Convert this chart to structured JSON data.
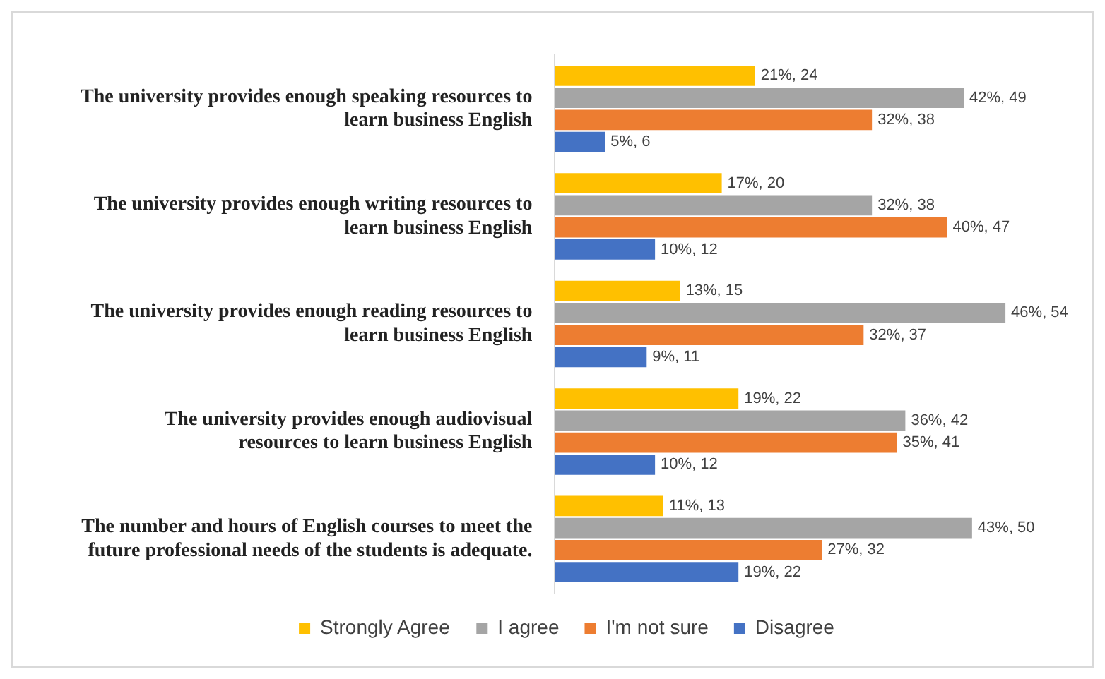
{
  "chart_data": {
    "type": "bar",
    "orientation": "horizontal",
    "legend": "bottom",
    "grid": false,
    "categories": [
      "The university provides enough speaking resources to learn business English",
      "The university provides enough writing resources to learn business English",
      "The university provides enough reading resources to learn business English",
      "The university provides enough audiovisual resources to learn business English",
      "The number and hours of English courses to meet the future professional needs of the students is adequate."
    ],
    "series": [
      {
        "name": "Strongly Agree",
        "color": "#ffc000",
        "values": [
          24,
          20,
          15,
          22,
          13
        ],
        "value_labels": [
          "21%, 24",
          "17%, 20",
          "13%, 15",
          "19%, 22",
          "11%, 13"
        ]
      },
      {
        "name": "I agree",
        "color": "#a5a5a5",
        "values": [
          49,
          38,
          54,
          42,
          50
        ],
        "value_labels": [
          "42%, 49",
          "32%, 38",
          "46%, 54",
          "36%, 42",
          "43%, 50"
        ]
      },
      {
        "name": "I'm not sure",
        "color": "#ed7d31",
        "values": [
          38,
          47,
          37,
          41,
          32
        ],
        "value_labels": [
          "32%, 38",
          "40%, 47",
          "32%, 37",
          "35%, 41",
          "27%, 32"
        ]
      },
      {
        "name": "Disagree",
        "color": "#4472c4",
        "values": [
          6,
          12,
          11,
          12,
          22
        ],
        "value_labels": [
          "5%, 6",
          "10%, 12",
          "9%, 11",
          "10%, 12",
          "19%, 22"
        ]
      }
    ]
  }
}
